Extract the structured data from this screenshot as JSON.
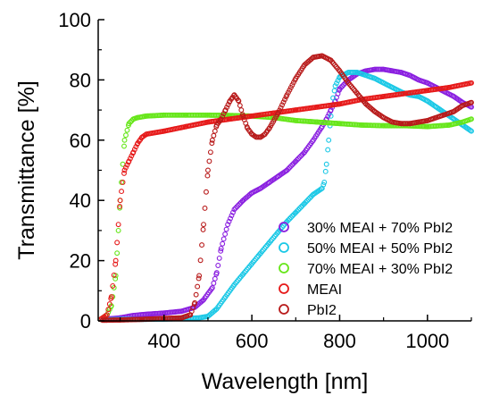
{
  "chart_data": {
    "type": "scatter",
    "title": "",
    "xlabel": "Wavelength [nm]",
    "ylabel": "Transmittance [%]",
    "xlim": [
      250,
      1100
    ],
    "ylim": [
      0,
      100
    ],
    "x_ticks": [
      400,
      600,
      800,
      1000
    ],
    "y_ticks": [
      0,
      20,
      40,
      60,
      80,
      100
    ],
    "x_tick_labels": [
      "400",
      "600",
      "800",
      "1000"
    ],
    "y_tick_labels": [
      "0",
      "20",
      "40",
      "60",
      "80",
      "100"
    ],
    "grid": false,
    "legend_position": "lower-right",
    "marker": "open-circle",
    "series": [
      {
        "name": "30% MEAI + 70% PbI2",
        "color": "#8a1fe0",
        "points": [
          [
            260,
            0.5
          ],
          [
            300,
            1
          ],
          [
            330,
            1.8
          ],
          [
            360,
            2.2
          ],
          [
            400,
            2.6
          ],
          [
            440,
            3.2
          ],
          [
            470,
            4.5
          ],
          [
            490,
            7
          ],
          [
            510,
            11
          ],
          [
            520,
            16
          ],
          [
            530,
            24
          ],
          [
            545,
            32
          ],
          [
            560,
            37
          ],
          [
            580,
            40
          ],
          [
            600,
            42.5
          ],
          [
            620,
            44
          ],
          [
            640,
            46
          ],
          [
            660,
            48
          ],
          [
            680,
            50
          ],
          [
            700,
            53
          ],
          [
            720,
            56
          ],
          [
            740,
            60
          ],
          [
            760,
            64.5
          ],
          [
            770,
            67
          ],
          [
            780,
            70
          ],
          [
            790,
            73
          ],
          [
            800,
            77
          ],
          [
            820,
            80
          ],
          [
            840,
            82
          ],
          [
            860,
            83
          ],
          [
            880,
            83.5
          ],
          [
            900,
            83.5
          ],
          [
            920,
            83
          ],
          [
            940,
            82.5
          ],
          [
            960,
            81.5
          ],
          [
            980,
            80
          ],
          [
            1000,
            79
          ],
          [
            1020,
            77.5
          ],
          [
            1040,
            76
          ],
          [
            1060,
            74.5
          ],
          [
            1080,
            72.5
          ],
          [
            1100,
            71
          ]
        ]
      },
      {
        "name": "50% MEAI + 50% PbI2",
        "color": "#1ac8e6",
        "points": [
          [
            260,
            0.3
          ],
          [
            300,
            0.5
          ],
          [
            350,
            0.5
          ],
          [
            400,
            0.6
          ],
          [
            450,
            0.8
          ],
          [
            480,
            1
          ],
          [
            500,
            1.5
          ],
          [
            520,
            4
          ],
          [
            540,
            8
          ],
          [
            560,
            12
          ],
          [
            580,
            15.5
          ],
          [
            600,
            19
          ],
          [
            620,
            22.5
          ],
          [
            640,
            26
          ],
          [
            660,
            29.5
          ],
          [
            680,
            33
          ],
          [
            700,
            36
          ],
          [
            720,
            39
          ],
          [
            740,
            42
          ],
          [
            760,
            44
          ],
          [
            765,
            46
          ],
          [
            770,
            52
          ],
          [
            775,
            60
          ],
          [
            780,
            68
          ],
          [
            785,
            74
          ],
          [
            790,
            78
          ],
          [
            800,
            81
          ],
          [
            820,
            82.5
          ],
          [
            840,
            82.5
          ],
          [
            860,
            81.5
          ],
          [
            880,
            80.5
          ],
          [
            900,
            79
          ],
          [
            920,
            77.5
          ],
          [
            940,
            76
          ],
          [
            960,
            75
          ],
          [
            980,
            74.5
          ],
          [
            1000,
            73
          ],
          [
            1020,
            71
          ],
          [
            1040,
            69
          ],
          [
            1060,
            67
          ],
          [
            1080,
            65
          ],
          [
            1100,
            63
          ]
        ]
      },
      {
        "name": "70% MEAI + 30% PbI2",
        "color": "#66e619",
        "points": [
          [
            255,
            0.5
          ],
          [
            270,
            2
          ],
          [
            280,
            5
          ],
          [
            290,
            15
          ],
          [
            300,
            40
          ],
          [
            310,
            60
          ],
          [
            320,
            65.5
          ],
          [
            330,
            67
          ],
          [
            340,
            67.5
          ],
          [
            360,
            68
          ],
          [
            400,
            68.3
          ],
          [
            450,
            68.3
          ],
          [
            500,
            68.3
          ],
          [
            550,
            68.2
          ],
          [
            600,
            68
          ],
          [
            650,
            67.5
          ],
          [
            700,
            66.5
          ],
          [
            750,
            66
          ],
          [
            800,
            65.5
          ],
          [
            850,
            65
          ],
          [
            900,
            64.8
          ],
          [
            950,
            64.8
          ],
          [
            1000,
            64.5
          ],
          [
            1050,
            65
          ],
          [
            1080,
            66
          ],
          [
            1100,
            67
          ]
        ]
      },
      {
        "name": "MEAI",
        "color": "#e61919",
        "points": [
          [
            255,
            0.5
          ],
          [
            270,
            2
          ],
          [
            280,
            8
          ],
          [
            290,
            20
          ],
          [
            300,
            40
          ],
          [
            310,
            50
          ],
          [
            320,
            53
          ],
          [
            330,
            56
          ],
          [
            340,
            59
          ],
          [
            350,
            61
          ],
          [
            360,
            62
          ],
          [
            400,
            63
          ],
          [
            450,
            64.5
          ],
          [
            500,
            66
          ],
          [
            550,
            67
          ],
          [
            600,
            68
          ],
          [
            650,
            69
          ],
          [
            700,
            70
          ],
          [
            750,
            71
          ],
          [
            800,
            72
          ],
          [
            850,
            73.5
          ],
          [
            900,
            74.5
          ],
          [
            950,
            75.5
          ],
          [
            1000,
            76.5
          ],
          [
            1050,
            77.5
          ],
          [
            1100,
            79
          ]
        ]
      },
      {
        "name": "PbI2",
        "color": "#b81a1a",
        "points": [
          [
            260,
            0.2
          ],
          [
            300,
            0.3
          ],
          [
            350,
            0.5
          ],
          [
            400,
            0.8
          ],
          [
            440,
            1
          ],
          [
            460,
            2
          ],
          [
            470,
            6
          ],
          [
            480,
            15
          ],
          [
            490,
            32
          ],
          [
            500,
            50
          ],
          [
            510,
            60
          ],
          [
            520,
            65
          ],
          [
            530,
            67
          ],
          [
            540,
            70
          ],
          [
            550,
            73
          ],
          [
            560,
            75
          ],
          [
            570,
            73
          ],
          [
            580,
            68
          ],
          [
            590,
            64
          ],
          [
            600,
            62
          ],
          [
            610,
            61
          ],
          [
            620,
            61
          ],
          [
            630,
            62
          ],
          [
            640,
            64
          ],
          [
            660,
            69
          ],
          [
            680,
            75
          ],
          [
            700,
            80.5
          ],
          [
            720,
            85
          ],
          [
            740,
            87.5
          ],
          [
            760,
            88
          ],
          [
            780,
            86.5
          ],
          [
            800,
            83
          ],
          [
            820,
            79
          ],
          [
            840,
            75.5
          ],
          [
            860,
            72
          ],
          [
            880,
            69.5
          ],
          [
            900,
            67.5
          ],
          [
            920,
            66
          ],
          [
            940,
            65.5
          ],
          [
            960,
            65.5
          ],
          [
            980,
            66
          ],
          [
            1000,
            66.5
          ],
          [
            1020,
            67.5
          ],
          [
            1040,
            68.5
          ],
          [
            1060,
            69.5
          ],
          [
            1080,
            71.5
          ],
          [
            1100,
            72.5
          ]
        ]
      }
    ]
  }
}
